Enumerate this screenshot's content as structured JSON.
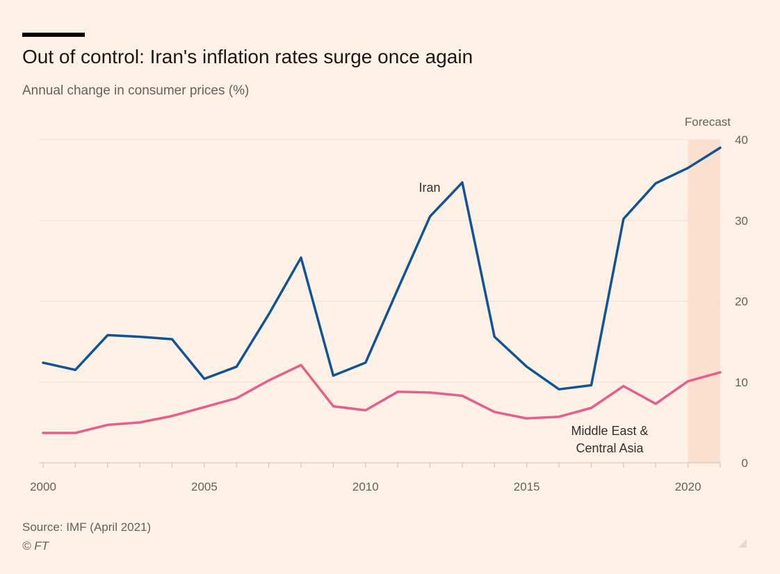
{
  "header": {
    "title": "Out of control: Iran's inflation rates surge once again",
    "subtitle": "Annual change in consumer prices (%)"
  },
  "footer": {
    "source": "Source: IMF (April 2021)",
    "credit": "© FT"
  },
  "chart_data": {
    "type": "line",
    "title": "Out of control: Iran's inflation rates surge once again",
    "ylabel": "Annual change in consumer prices (%)",
    "xlabel": "",
    "xlim": [
      2000,
      2021
    ],
    "ylim": [
      0,
      40
    ],
    "x_ticks": [
      "2000",
      "2005",
      "2010",
      "2015",
      "2020"
    ],
    "y_ticks": [
      "0",
      "10",
      "20",
      "30",
      "40"
    ],
    "grid": true,
    "forecast": {
      "label": "Forecast",
      "from": 2020,
      "to": 2021,
      "color": "#fce0cf"
    },
    "x": [
      2000,
      2001,
      2002,
      2003,
      2004,
      2005,
      2006,
      2007,
      2008,
      2009,
      2010,
      2011,
      2012,
      2013,
      2014,
      2015,
      2016,
      2017,
      2018,
      2019,
      2020,
      2021
    ],
    "series": [
      {
        "name": "Iran",
        "label": "Iran",
        "color": "#0f5499",
        "values": [
          12.4,
          11.5,
          15.8,
          15.6,
          15.3,
          10.4,
          11.9,
          18.4,
          25.4,
          10.8,
          12.4,
          21.5,
          30.5,
          34.7,
          15.6,
          11.9,
          9.1,
          9.6,
          30.2,
          34.6,
          36.5,
          39.0
        ]
      },
      {
        "name": "Middle East & Central Asia",
        "label_lines": [
          "Middle East &",
          "Central Asia"
        ],
        "color": "#e95d8c",
        "values": [
          3.7,
          3.7,
          4.7,
          5.0,
          5.8,
          6.9,
          8.0,
          10.2,
          12.1,
          7.0,
          6.5,
          8.8,
          8.7,
          8.3,
          6.3,
          5.5,
          5.7,
          6.8,
          9.5,
          7.3,
          10.1,
          11.2
        ]
      }
    ]
  }
}
